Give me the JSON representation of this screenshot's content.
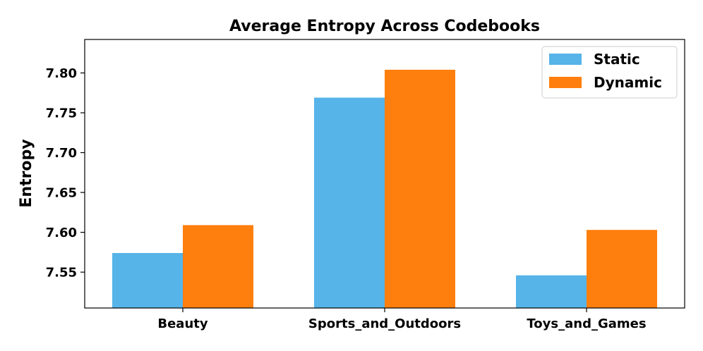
{
  "chart_data": {
    "type": "bar",
    "title": "Average Entropy Across Codebooks",
    "xlabel": "",
    "ylabel": "Entropy",
    "categories": [
      "Beauty",
      "Sports_and_Outdoors",
      "Toys_and_Games"
    ],
    "series": [
      {
        "name": "Static",
        "color": "#56b4e9",
        "values": [
          7.574,
          7.769,
          7.546
        ]
      },
      {
        "name": "Dynamic",
        "color": "#ff7f0e",
        "values": [
          7.609,
          7.804,
          7.603
        ]
      }
    ],
    "ylim": [
      7.505,
      7.842
    ],
    "yticks": [
      7.55,
      7.6,
      7.65,
      7.7,
      7.75,
      7.8
    ],
    "ytick_labels": [
      "7.55",
      "7.60",
      "7.65",
      "7.70",
      "7.75",
      "7.80"
    ],
    "grid": false,
    "legend_position": "top-right"
  }
}
